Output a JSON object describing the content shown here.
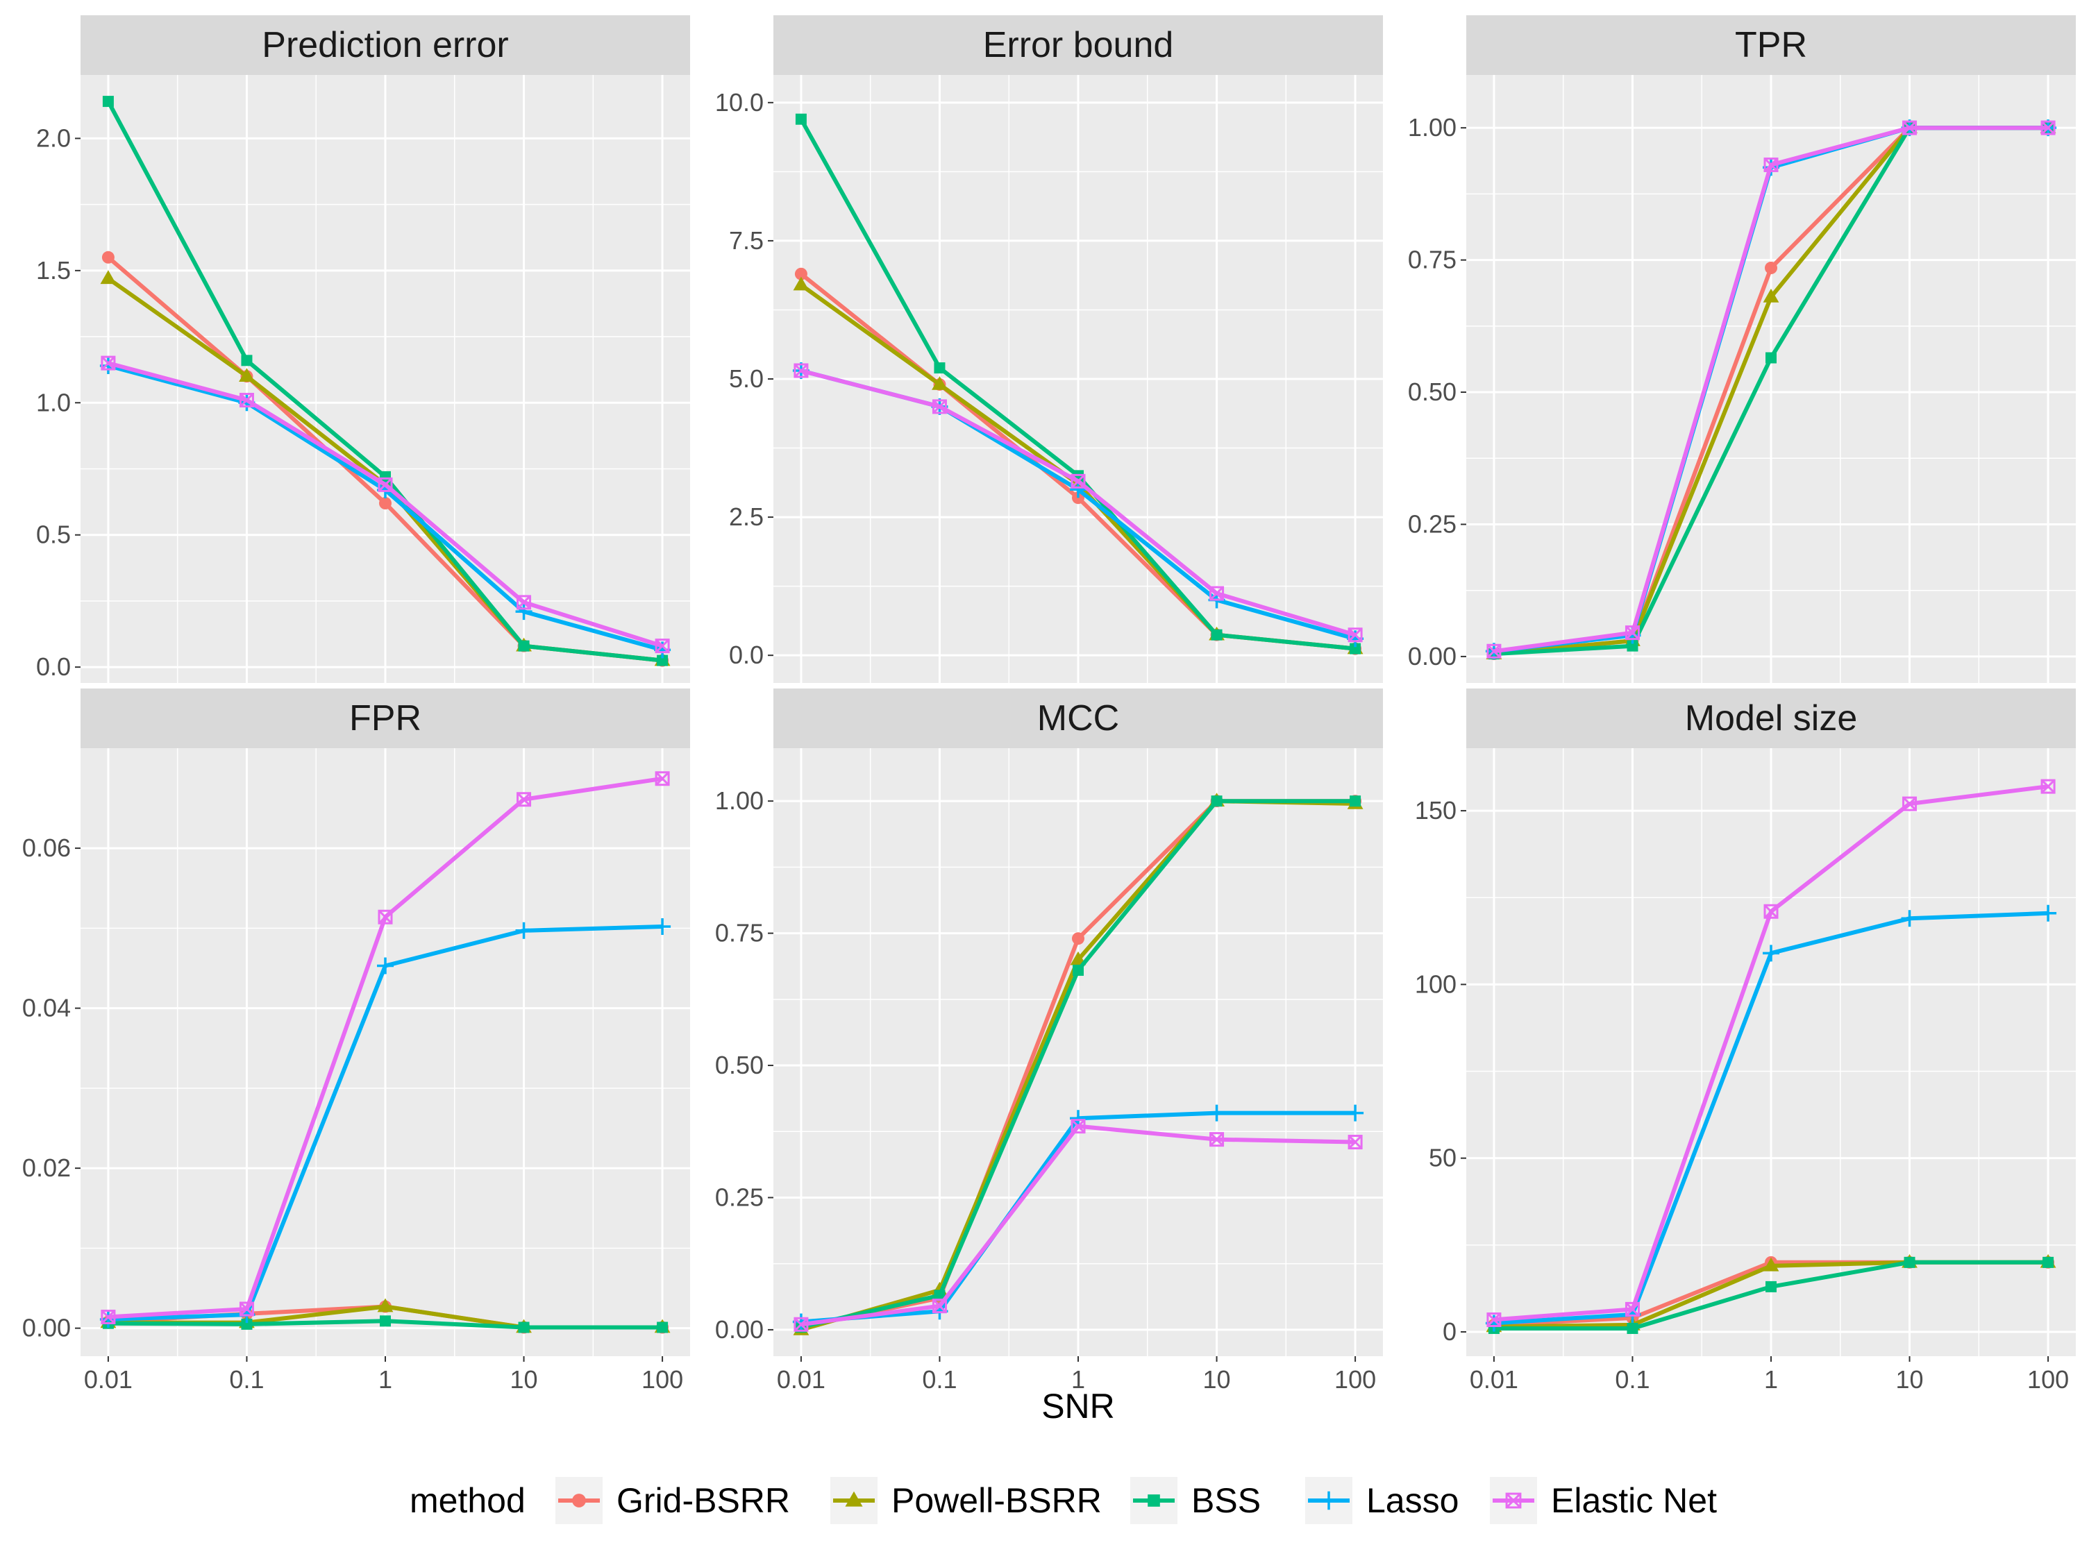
{
  "figure": {
    "xlabel": "SNR",
    "legend_title": "method",
    "legend_position": "bottom"
  },
  "chart_data": {
    "type": "line",
    "x_scale": "log10",
    "x": [
      0.01,
      0.1,
      1,
      10,
      100
    ],
    "x_tick_labels": [
      "0.01",
      "0.1",
      "1",
      "10",
      "100"
    ],
    "grid": true,
    "methods": [
      {
        "name": "Grid-BSRR",
        "color": "#F8766D",
        "marker": "circle"
      },
      {
        "name": "Powell-BSRR",
        "color": "#A3A500",
        "marker": "triangle"
      },
      {
        "name": "BSS",
        "color": "#00BF7D",
        "marker": "square"
      },
      {
        "name": "Lasso",
        "color": "#00B0F6",
        "marker": "plus"
      },
      {
        "name": "Elastic Net",
        "color": "#E76BF3",
        "marker": "boxed-x"
      }
    ],
    "panels": [
      {
        "title": "Prediction error",
        "ylim": [
          -0.06,
          2.24
        ],
        "y_ticks": [
          0,
          0.5,
          1,
          1.5,
          2
        ],
        "y_tick_labels": [
          "0.0",
          "0.5",
          "1.0",
          "1.5",
          "2.0"
        ],
        "series": [
          {
            "name": "Grid-BSRR",
            "values": [
              1.55,
              1.1,
              0.62,
              0.08,
              0.025
            ]
          },
          {
            "name": "Powell-BSRR",
            "values": [
              1.47,
              1.1,
              0.69,
              0.08,
              0.025
            ]
          },
          {
            "name": "BSS",
            "values": [
              2.14,
              1.16,
              0.72,
              0.08,
              0.025
            ]
          },
          {
            "name": "Lasso",
            "values": [
              1.14,
              1.0,
              0.67,
              0.21,
              0.065
            ]
          },
          {
            "name": "Elastic Net",
            "values": [
              1.15,
              1.01,
              0.69,
              0.245,
              0.08
            ]
          }
        ]
      },
      {
        "title": "Error bound",
        "ylim": [
          -0.5,
          10.5
        ],
        "y_ticks": [
          0,
          2.5,
          5,
          7.5,
          10
        ],
        "y_tick_labels": [
          "0.0",
          "2.5",
          "5.0",
          "7.5",
          "10.0"
        ],
        "series": [
          {
            "name": "Grid-BSRR",
            "values": [
              6.9,
              4.9,
              2.85,
              0.37,
              0.12
            ]
          },
          {
            "name": "Powell-BSRR",
            "values": [
              6.7,
              4.9,
              3.1,
              0.37,
              0.12
            ]
          },
          {
            "name": "BSS",
            "values": [
              9.7,
              5.2,
              3.25,
              0.37,
              0.12
            ]
          },
          {
            "name": "Lasso",
            "values": [
              5.15,
              4.5,
              3.0,
              1.0,
              0.3
            ]
          },
          {
            "name": "Elastic Net",
            "values": [
              5.15,
              4.5,
              3.15,
              1.12,
              0.37
            ]
          }
        ]
      },
      {
        "title": "TPR",
        "ylim": [
          -0.05,
          1.1
        ],
        "y_ticks": [
          0,
          0.25,
          0.5,
          0.75,
          1
        ],
        "y_tick_labels": [
          "0.00",
          "0.25",
          "0.50",
          "0.75",
          "1.00"
        ],
        "series": [
          {
            "name": "Grid-BSRR",
            "values": [
              0.005,
              0.03,
              0.735,
              1.0,
              1.0
            ]
          },
          {
            "name": "Powell-BSRR",
            "values": [
              0.005,
              0.03,
              0.68,
              1.0,
              1.0
            ]
          },
          {
            "name": "BSS",
            "values": [
              0.005,
              0.02,
              0.565,
              1.0,
              1.0
            ]
          },
          {
            "name": "Lasso",
            "values": [
              0.01,
              0.04,
              0.925,
              1.0,
              1.0
            ]
          },
          {
            "name": "Elastic Net",
            "values": [
              0.01,
              0.045,
              0.93,
              1.0,
              1.0
            ]
          }
        ]
      },
      {
        "title": "FPR",
        "ylim": [
          -0.0035,
          0.0725
        ],
        "y_ticks": [
          0,
          0.02,
          0.04,
          0.06
        ],
        "y_tick_labels": [
          "0.00",
          "0.02",
          "0.04",
          "0.06"
        ],
        "series": [
          {
            "name": "Grid-BSRR",
            "values": [
              0.0008,
              0.0018,
              0.0027,
              0.0001,
              0.0001
            ]
          },
          {
            "name": "Powell-BSRR",
            "values": [
              0.0007,
              0.0007,
              0.0027,
              0.0001,
              0.0001
            ]
          },
          {
            "name": "BSS",
            "values": [
              0.0006,
              0.0005,
              0.0009,
              0.0001,
              0.0001
            ]
          },
          {
            "name": "Lasso",
            "values": [
              0.0011,
              0.0017,
              0.0453,
              0.0497,
              0.0502
            ]
          },
          {
            "name": "Elastic Net",
            "values": [
              0.0014,
              0.0024,
              0.0514,
              0.0661,
              0.0687
            ]
          }
        ]
      },
      {
        "title": "MCC",
        "ylim": [
          -0.05,
          1.1
        ],
        "y_ticks": [
          0,
          0.25,
          0.5,
          0.75,
          1
        ],
        "y_tick_labels": [
          "0.00",
          "0.25",
          "0.50",
          "0.75",
          "1.00"
        ],
        "series": [
          {
            "name": "Grid-BSRR",
            "values": [
              0.005,
              0.06,
              0.74,
              1.0,
              1.0
            ]
          },
          {
            "name": "Powell-BSRR",
            "values": [
              0.0,
              0.075,
              0.7,
              1.0,
              0.995
            ]
          },
          {
            "name": "BSS",
            "values": [
              0.005,
              0.065,
              0.68,
              1.0,
              1.0
            ]
          },
          {
            "name": "Lasso",
            "values": [
              0.015,
              0.035,
              0.4,
              0.41,
              0.41
            ]
          },
          {
            "name": "Elastic Net",
            "values": [
              0.01,
              0.045,
              0.385,
              0.36,
              0.355
            ]
          }
        ]
      },
      {
        "title": "Model size",
        "ylim": [
          -7,
          168
        ],
        "y_ticks": [
          0,
          50,
          100,
          150
        ],
        "y_tick_labels": [
          "0",
          "50",
          "100",
          "150"
        ],
        "series": [
          {
            "name": "Grid-BSRR",
            "values": [
              2,
              4,
              20,
              20,
              20
            ]
          },
          {
            "name": "Powell-BSRR",
            "values": [
              1.5,
              2,
              19,
              20,
              20
            ]
          },
          {
            "name": "BSS",
            "values": [
              1,
              1,
              13,
              20,
              20
            ]
          },
          {
            "name": "Lasso",
            "values": [
              2.5,
              5,
              109,
              119,
              120.5
            ]
          },
          {
            "name": "Elastic Net",
            "values": [
              3.5,
              6.5,
              121,
              152,
              157
            ]
          }
        ]
      }
    ]
  }
}
